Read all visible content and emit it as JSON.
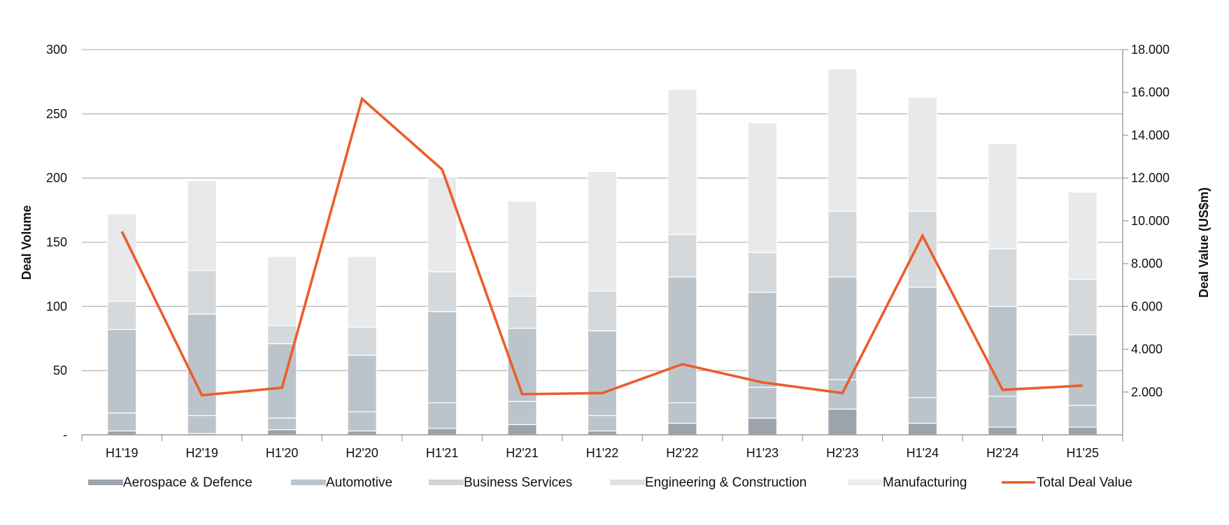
{
  "chart_data": {
    "type": "bar",
    "stacked": true,
    "categories": [
      "H1'19",
      "H2'19",
      "H1'20",
      "H2'20",
      "H1'21",
      "H2'21",
      "H1'22",
      "H2'22",
      "H1'23",
      "H2'23",
      "H1'24",
      "H2'24",
      "H1'25"
    ],
    "series": [
      {
        "name": "Aerospace & Defence",
        "color": "#9da3ad",
        "values": [
          3,
          1,
          4,
          3,
          5,
          8,
          3,
          9,
          13,
          20,
          9,
          6,
          6
        ]
      },
      {
        "name": "Automotive",
        "color": "#bcc4cb",
        "values": [
          14,
          14,
          9,
          15,
          20,
          18,
          12,
          16,
          24,
          23,
          20,
          24,
          17
        ]
      },
      {
        "name": "Business Services",
        "color": "#bcc4cb",
        "values": [
          65,
          79,
          58,
          44,
          71,
          57,
          66,
          98,
          74,
          80,
          86,
          70,
          55
        ]
      },
      {
        "name": "Engineering & Construction",
        "color": "#d5d9dc",
        "values": [
          22,
          34,
          14,
          22,
          31,
          25,
          31,
          33,
          31,
          51,
          59,
          45,
          43
        ]
      },
      {
        "name": "Manufacturing",
        "color": "#e7e9eb",
        "values": [
          68,
          70,
          54,
          55,
          74,
          74,
          93,
          113,
          101,
          111,
          89,
          82,
          68
        ]
      }
    ],
    "line": {
      "name": "Total Deal Value",
      "color": "#ec5d2a",
      "values": [
        9500,
        1850,
        2200,
        15700,
        12400,
        1900,
        1950,
        3300,
        2450,
        1950,
        9300,
        2100,
        2300
      ]
    },
    "yleft": {
      "label": "Deal Volume",
      "ylim": [
        0,
        300
      ],
      "ticks": [
        0,
        50,
        100,
        150,
        200,
        250,
        300
      ],
      "tick_labels": [
        "-",
        "50",
        "100",
        "150",
        "200",
        "250",
        "300"
      ]
    },
    "yright": {
      "label": "Deal Value (US$m)",
      "ylim": [
        0,
        18000
      ],
      "ticks": [
        2000,
        4000,
        6000,
        8000,
        10000,
        12000,
        14000,
        16000,
        18000
      ],
      "tick_labels": [
        "2.000",
        "4.000",
        "6.000",
        "8.000",
        "10.000",
        "12.000",
        "14.000",
        "16.000",
        "18.000"
      ]
    },
    "legend": {
      "placement": "bottom",
      "items": [
        {
          "label": "Aerospace & Defence",
          "kind": "bar",
          "color": "#9da3ad"
        },
        {
          "label": "Automotive",
          "kind": "bar",
          "color": "#bcc4cb"
        },
        {
          "label": "Business Services",
          "kind": "bar",
          "color": "#d0d4d7"
        },
        {
          "label": "Engineering & Construction",
          "kind": "bar",
          "color": "#dee1e3"
        },
        {
          "label": "Manufacturing",
          "kind": "bar",
          "color": "#e9ebed"
        },
        {
          "label": "Total Deal Value",
          "kind": "line",
          "color": "#ec5d2a"
        }
      ]
    },
    "grid": true
  }
}
